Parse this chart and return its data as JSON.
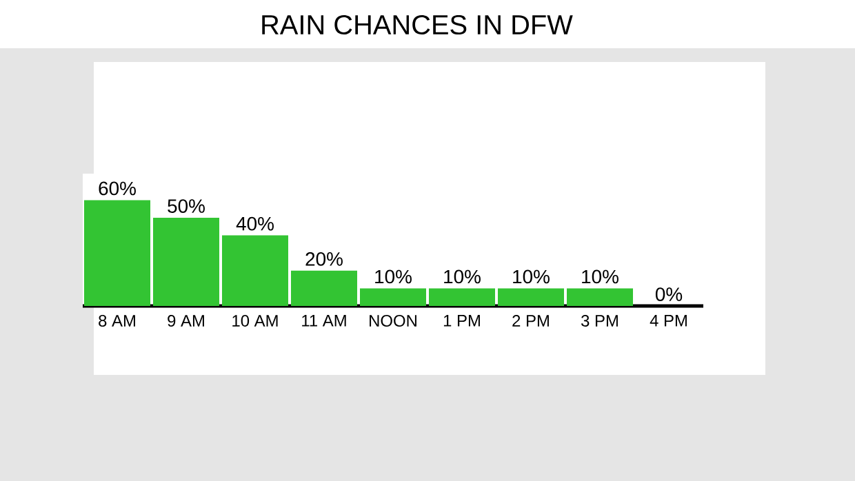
{
  "chart_data": {
    "type": "bar",
    "title": "RAIN CHANCES IN DFW",
    "categories": [
      "8 AM",
      "9 AM",
      "10 AM",
      "11 AM",
      "NOON",
      "1 PM",
      "2 PM",
      "3 PM",
      "4 PM"
    ],
    "values": [
      60,
      50,
      40,
      20,
      10,
      10,
      10,
      10,
      0
    ],
    "value_labels": [
      "60%",
      "50%",
      "40%",
      "20%",
      "10%",
      "10%",
      "10%",
      "10%",
      "0%"
    ],
    "color": "#33c433"
  }
}
